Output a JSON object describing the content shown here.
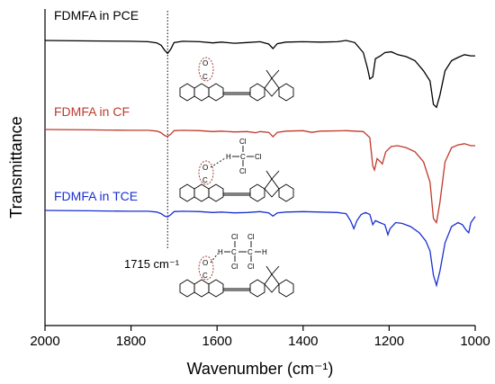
{
  "chart_data": {
    "type": "line",
    "xlabel": "Wavenumber (cm⁻¹)",
    "ylabel": "Transmittance",
    "xlim": [
      2000,
      1000
    ],
    "x_reversed": true,
    "x_ticks": [
      2000,
      1800,
      1600,
      1400,
      1200,
      1000
    ],
    "y_ticks_shown": false,
    "grid": false,
    "annotations": [
      {
        "text": "1715 cm⁻¹",
        "x": 1715,
        "style": "dotted-vertical-line"
      }
    ],
    "series": [
      {
        "name": "FDMFA in PCE",
        "color": "#000000",
        "offset": 3.0,
        "points": [
          [
            2000,
            0.0
          ],
          [
            1900,
            0.01
          ],
          [
            1800,
            0.02
          ],
          [
            1760,
            0.03
          ],
          [
            1740,
            0.06
          ],
          [
            1730,
            0.12
          ],
          [
            1722,
            0.24
          ],
          [
            1715,
            0.32
          ],
          [
            1708,
            0.22
          ],
          [
            1700,
            0.05
          ],
          [
            1680,
            0.02
          ],
          [
            1640,
            0.03
          ],
          [
            1610,
            0.06
          ],
          [
            1590,
            0.04
          ],
          [
            1560,
            0.07
          ],
          [
            1530,
            0.05
          ],
          [
            1500,
            0.03
          ],
          [
            1480,
            0.09
          ],
          [
            1470,
            0.2
          ],
          [
            1460,
            0.08
          ],
          [
            1440,
            0.04
          ],
          [
            1400,
            0.03
          ],
          [
            1360,
            0.04
          ],
          [
            1320,
            0.03
          ],
          [
            1300,
            0.0
          ],
          [
            1280,
            0.05
          ],
          [
            1260,
            0.3
          ],
          [
            1250,
            0.7
          ],
          [
            1245,
            0.95
          ],
          [
            1238,
            0.9
          ],
          [
            1232,
            0.45
          ],
          [
            1220,
            0.38
          ],
          [
            1210,
            0.3
          ],
          [
            1195,
            0.28
          ],
          [
            1180,
            0.35
          ],
          [
            1160,
            0.4
          ],
          [
            1140,
            0.5
          ],
          [
            1120,
            0.75
          ],
          [
            1105,
            1.0
          ],
          [
            1097,
            1.58
          ],
          [
            1090,
            1.65
          ],
          [
            1082,
            1.35
          ],
          [
            1070,
            0.75
          ],
          [
            1055,
            0.5
          ],
          [
            1040,
            0.42
          ],
          [
            1025,
            0.35
          ],
          [
            1010,
            0.38
          ],
          [
            1000,
            0.38
          ]
        ]
      },
      {
        "name": "FDMFA in CF",
        "color": "#c0392b",
        "offset": 2.0,
        "points": [
          [
            2000,
            0.0
          ],
          [
            1900,
            0.01
          ],
          [
            1800,
            0.02
          ],
          [
            1760,
            0.02
          ],
          [
            1740,
            0.04
          ],
          [
            1730,
            0.08
          ],
          [
            1722,
            0.15
          ],
          [
            1715,
            0.17
          ],
          [
            1708,
            0.12
          ],
          [
            1700,
            0.03
          ],
          [
            1680,
            0.02
          ],
          [
            1640,
            0.03
          ],
          [
            1610,
            0.05
          ],
          [
            1590,
            0.04
          ],
          [
            1560,
            0.06
          ],
          [
            1530,
            0.05
          ],
          [
            1510,
            0.08
          ],
          [
            1500,
            0.05
          ],
          [
            1480,
            0.07
          ],
          [
            1470,
            0.18
          ],
          [
            1460,
            0.07
          ],
          [
            1440,
            0.04
          ],
          [
            1400,
            0.03
          ],
          [
            1380,
            0.07
          ],
          [
            1360,
            0.04
          ],
          [
            1300,
            0.03
          ],
          [
            1260,
            0.05
          ],
          [
            1245,
            0.2
          ],
          [
            1238,
            0.9
          ],
          [
            1234,
            1.0
          ],
          [
            1228,
            0.72
          ],
          [
            1222,
            0.78
          ],
          [
            1216,
            0.85
          ],
          [
            1208,
            0.55
          ],
          [
            1195,
            0.42
          ],
          [
            1180,
            0.4
          ],
          [
            1160,
            0.45
          ],
          [
            1140,
            0.55
          ],
          [
            1120,
            0.8
          ],
          [
            1105,
            1.3
          ],
          [
            1097,
            2.2
          ],
          [
            1090,
            2.3
          ],
          [
            1082,
            1.8
          ],
          [
            1070,
            0.8
          ],
          [
            1055,
            0.45
          ],
          [
            1040,
            0.38
          ],
          [
            1025,
            0.35
          ],
          [
            1010,
            0.4
          ],
          [
            1000,
            0.4
          ]
        ]
      },
      {
        "name": "FDMFA in TCE",
        "color": "#1a2fd0",
        "offset": 1.0,
        "points": [
          [
            2000,
            0.0
          ],
          [
            1900,
            0.01
          ],
          [
            1800,
            0.02
          ],
          [
            1760,
            0.02
          ],
          [
            1740,
            0.04
          ],
          [
            1730,
            0.08
          ],
          [
            1722,
            0.14
          ],
          [
            1715,
            0.16
          ],
          [
            1708,
            0.11
          ],
          [
            1700,
            0.03
          ],
          [
            1680,
            0.02
          ],
          [
            1640,
            0.03
          ],
          [
            1610,
            0.05
          ],
          [
            1590,
            0.04
          ],
          [
            1560,
            0.06
          ],
          [
            1530,
            0.05
          ],
          [
            1500,
            0.03
          ],
          [
            1480,
            0.06
          ],
          [
            1470,
            0.14
          ],
          [
            1460,
            0.06
          ],
          [
            1440,
            0.04
          ],
          [
            1400,
            0.03
          ],
          [
            1360,
            0.04
          ],
          [
            1320,
            0.05
          ],
          [
            1300,
            0.08
          ],
          [
            1290,
            0.25
          ],
          [
            1282,
            0.45
          ],
          [
            1275,
            0.25
          ],
          [
            1265,
            0.1
          ],
          [
            1255,
            0.05
          ],
          [
            1245,
            0.1
          ],
          [
            1238,
            0.35
          ],
          [
            1232,
            0.25
          ],
          [
            1222,
            0.3
          ],
          [
            1210,
            0.35
          ],
          [
            1203,
            0.6
          ],
          [
            1198,
            0.45
          ],
          [
            1185,
            0.3
          ],
          [
            1170,
            0.32
          ],
          [
            1150,
            0.4
          ],
          [
            1130,
            0.55
          ],
          [
            1115,
            0.75
          ],
          [
            1105,
            1.0
          ],
          [
            1097,
            1.6
          ],
          [
            1090,
            1.85
          ],
          [
            1082,
            1.5
          ],
          [
            1070,
            0.8
          ],
          [
            1055,
            0.4
          ],
          [
            1040,
            0.3
          ],
          [
            1030,
            0.35
          ],
          [
            1020,
            0.5
          ],
          [
            1015,
            0.55
          ],
          [
            1010,
            0.3
          ],
          [
            1000,
            0.15
          ]
        ]
      }
    ]
  },
  "structures": {
    "carbonyl_label": "O",
    "carbonyl_atom": "C",
    "chloroform": {
      "h": "H",
      "c": "C",
      "cl": "Cl"
    },
    "tce": {
      "h": "H",
      "c": "C",
      "cl": "Cl"
    }
  }
}
